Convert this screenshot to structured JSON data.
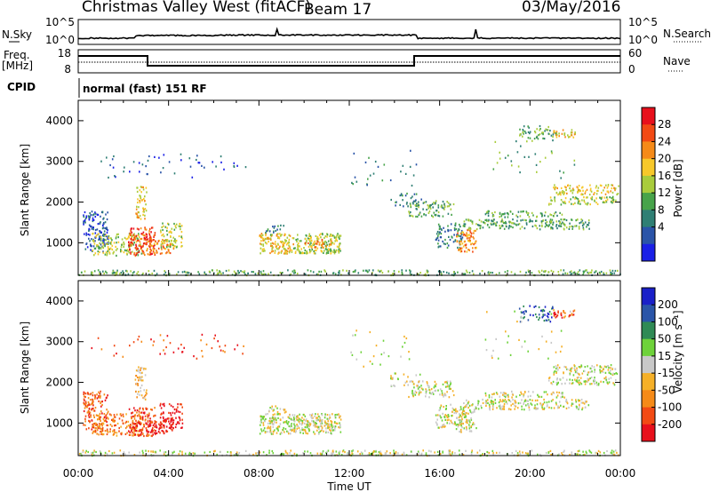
{
  "header": {
    "title": "Christmas Valley West (fitACF)",
    "beam": "Beam 17",
    "date": "03/May/2016"
  },
  "sky_panel": {
    "left_label": "N.Sky",
    "left_ticks": [
      "10^5",
      "10^0"
    ],
    "right_ticks": [
      "10^5",
      "10^0"
    ],
    "right_label": "N.Search"
  },
  "freq_panel": {
    "left_label_1": "Freq.",
    "left_label_2": "[MHz]",
    "left_ticks": [
      "18",
      "8"
    ],
    "right_ticks": [
      "60",
      "0"
    ],
    "right_label": "Nave"
  },
  "cpid": {
    "label": "CPID",
    "program": "normal (fast) 151 RF"
  },
  "chart_data": [
    {
      "type": "heatmap",
      "name": "power",
      "ylabel": "Slant Range [km]",
      "yticks": [
        "4000",
        "3000",
        "2000",
        "1000"
      ],
      "ylim": [
        200,
        4500
      ],
      "xlim_hours": [
        0,
        24
      ],
      "colorbar": {
        "label": "Power [dB]",
        "ticks": [
          "28",
          "24",
          "20",
          "16",
          "12",
          "8",
          "4"
        ],
        "colors": [
          "#e8101c",
          "#f24a14",
          "#f58a18",
          "#f7c82a",
          "#a9cc3c",
          "#47a34a",
          "#2f7f74",
          "#2a54a8",
          "#1a20e6"
        ]
      }
    },
    {
      "type": "heatmap",
      "name": "velocity",
      "ylabel": "Slant Range [km]",
      "yticks": [
        "4000",
        "3000",
        "2000",
        "1000"
      ],
      "ylim": [
        200,
        4500
      ],
      "xlim_hours": [
        0,
        24
      ],
      "colorbar": {
        "label": "Velocity [m s⁻¹]",
        "ticks": [
          "200",
          "100",
          "50",
          "15",
          "-15",
          "-50",
          "-100",
          "-200"
        ],
        "colors": [
          "#1a20c8",
          "#2a55a8",
          "#2f8a55",
          "#6ed23a",
          "#c8c8c8",
          "#f5b028",
          "#f58a18",
          "#f24a14",
          "#e8101c"
        ]
      }
    }
  ],
  "time_axis": {
    "ticks": [
      "00:00",
      "04:00",
      "08:00",
      "12:00",
      "16:00",
      "20:00",
      "00:00"
    ],
    "label": "Time UT"
  }
}
